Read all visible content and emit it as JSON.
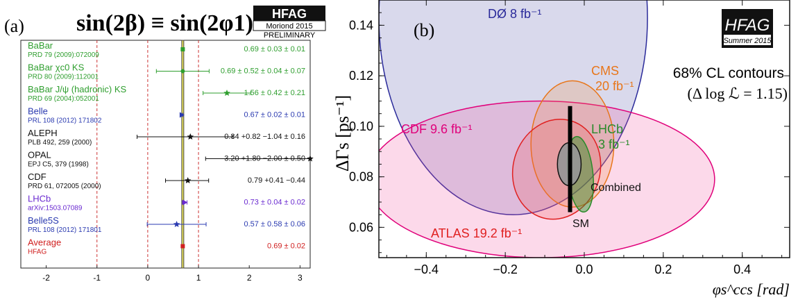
{
  "chart_data": [
    {
      "type": "scatter",
      "panel_label": "(a)",
      "title": "sin(2β) ≡ sin(2φ1)",
      "badge": {
        "name": "HFAG",
        "line1": "Moriond 2015",
        "line2": "PRELIMINARY"
      },
      "xlim": [
        -2.5,
        3.2
      ],
      "xticks": [
        "-2",
        "-1",
        "0",
        "1",
        "2",
        "3"
      ],
      "reference_lines_x": [
        -1,
        0,
        1
      ],
      "average_band": [
        0.67,
        0.71
      ],
      "measurements": [
        {
          "name": "BaBar",
          "ref": "PRD 79 (2009):072009",
          "value": 0.69,
          "err_lo": 0.03,
          "err_hi": 0.03,
          "label": "0.69 ± 0.03 ± 0.01",
          "color": "#2e9e2e",
          "marker": "square"
        },
        {
          "name": "BaBar χc0 KS",
          "ref": "PRD 80 (2009):112001",
          "value": 0.69,
          "err_lo": 0.52,
          "err_hi": 0.52,
          "label": "0.69 ± 0.52 ± 0.04 ± 0.07",
          "color": "#2e9e2e",
          "marker": "circle"
        },
        {
          "name": "BaBar J/ψ (hadronic) KS",
          "ref": "PRD 69 (2004):052001",
          "value": 1.56,
          "err_lo": 0.47,
          "err_hi": 0.47,
          "label": "1.56 ± 0.42 ± 0.21",
          "color": "#2e9e2e",
          "marker": "star"
        },
        {
          "name": "Belle",
          "ref": "PRL 108 (2012) 171802",
          "value": 0.67,
          "err_lo": 0.02,
          "err_hi": 0.02,
          "label": "0.67 ± 0.02 ± 0.01",
          "color": "#2a3ab0",
          "marker": "triangle"
        },
        {
          "name": "ALEPH",
          "ref": "PLB 492, 259 (2000)",
          "value": 0.84,
          "err_lo": 1.05,
          "err_hi": 0.84,
          "label": "0.84 +0.82 −1.04 ± 0.16",
          "color": "#111111",
          "marker": "star"
        },
        {
          "name": "OPAL",
          "ref": "EPJ C5, 379 (1998)",
          "value": 3.2,
          "err_lo": 2.06,
          "err_hi": 1.87,
          "label": "3.20 +1.80 −2.00 ± 0.50",
          "color": "#111111",
          "marker": "star"
        },
        {
          "name": "CDF",
          "ref": "PRD 61, 072005 (2000)",
          "value": 0.79,
          "err_lo": 0.44,
          "err_hi": 0.41,
          "label": "0.79 +0.41 −0.44",
          "color": "#111111",
          "marker": "star"
        },
        {
          "name": "LHCb",
          "ref": "arXiv:1503.07089",
          "value": 0.73,
          "err_lo": 0.045,
          "err_hi": 0.045,
          "label": "0.73 ± 0.04 ± 0.02",
          "color": "#6a2ad0",
          "marker": "triangle"
        },
        {
          "name": "Belle5S",
          "ref": "PRL 108 (2012) 171801",
          "value": 0.57,
          "err_lo": 0.58,
          "err_hi": 0.58,
          "label": "0.57 ± 0.58 ± 0.06",
          "color": "#2a3ab0",
          "marker": "star"
        },
        {
          "name": "Average",
          "ref": "HFAG",
          "value": 0.69,
          "err_lo": 0.02,
          "err_hi": 0.02,
          "label": "0.69 ± 0.02",
          "color": "#d02020",
          "marker": "square"
        }
      ]
    },
    {
      "type": "area",
      "panel_label": "(b)",
      "badge": {
        "name": "HFAG",
        "line1": "Summer 2015"
      },
      "xlabel": "φs^ccs [rad]",
      "ylabel": "ΔΓs [ps⁻¹]",
      "xlim": [
        -0.52,
        0.52
      ],
      "ylim": [
        0.048,
        0.15
      ],
      "xticks": [
        -0.4,
        -0.2,
        0.0,
        0.2,
        0.4
      ],
      "xtick_labels": [
        "−0.4",
        "−0.2",
        "0.0",
        "0.2",
        "0.4"
      ],
      "yticks": [
        0.06,
        0.08,
        0.1,
        0.12,
        0.14
      ],
      "ytick_labels": [
        "0.06",
        "0.08",
        "0.10",
        "0.12",
        "0.14"
      ],
      "legend_title": [
        "68% CL contours",
        "(Δ log ℒ = 1.15)"
      ],
      "sm": {
        "label": "SM",
        "x": -0.036,
        "y_low": 0.066,
        "y_high": 0.108
      },
      "contours": [
        {
          "name": "DØ 8 fb⁻¹",
          "color": "#2a2a9a",
          "fill": "rgba(80,80,170,0.22)",
          "cx": -0.18,
          "cy": 0.143,
          "rx": 0.34,
          "ry": 0.078,
          "tilt": 0
        },
        {
          "name": "CDF 9.6 fb⁻¹",
          "color": "#e0007a",
          "fill": "rgba(240,80,160,0.22)",
          "cx": -0.11,
          "cy": 0.079,
          "rx": 0.44,
          "ry": 0.031,
          "tilt": 0
        },
        {
          "name": "CMS 20 fb⁻¹",
          "color": "#e8761a",
          "fill": "rgba(240,140,60,0.22)",
          "cx": -0.03,
          "cy": 0.093,
          "rx": 0.105,
          "ry": 0.025,
          "tilt": 0
        },
        {
          "name": "ATLAS 19.2 fb⁻¹",
          "color": "#e02020",
          "fill": "rgba(240,80,80,0.22)",
          "cx": -0.07,
          "cy": 0.083,
          "rx": 0.11,
          "ry": 0.02,
          "tilt": -0.3
        },
        {
          "name": "LHCb 3 fb⁻¹",
          "color": "#2a8a2a",
          "fill": "rgba(40,150,40,0.45)",
          "cx": -0.01,
          "cy": 0.081,
          "rx": 0.032,
          "ry": 0.015,
          "tilt": 0.1
        },
        {
          "name": "Combined",
          "color": "#111111",
          "fill": "rgba(150,150,150,0.92)",
          "cx": -0.038,
          "cy": 0.085,
          "rx": 0.03,
          "ry": 0.0085,
          "tilt": 0
        }
      ],
      "labels": {
        "d0": "DØ 8 fb⁻¹",
        "cdf": "CDF 9.6 fb⁻¹",
        "cms1": "CMS",
        "cms2": "20 fb⁻¹",
        "lhcb1": "LHCb",
        "lhcb2": "3 fb⁻¹",
        "atlas": "ATLAS 19.2 fb⁻¹",
        "combined": "Combined",
        "sm": "SM"
      }
    }
  ]
}
